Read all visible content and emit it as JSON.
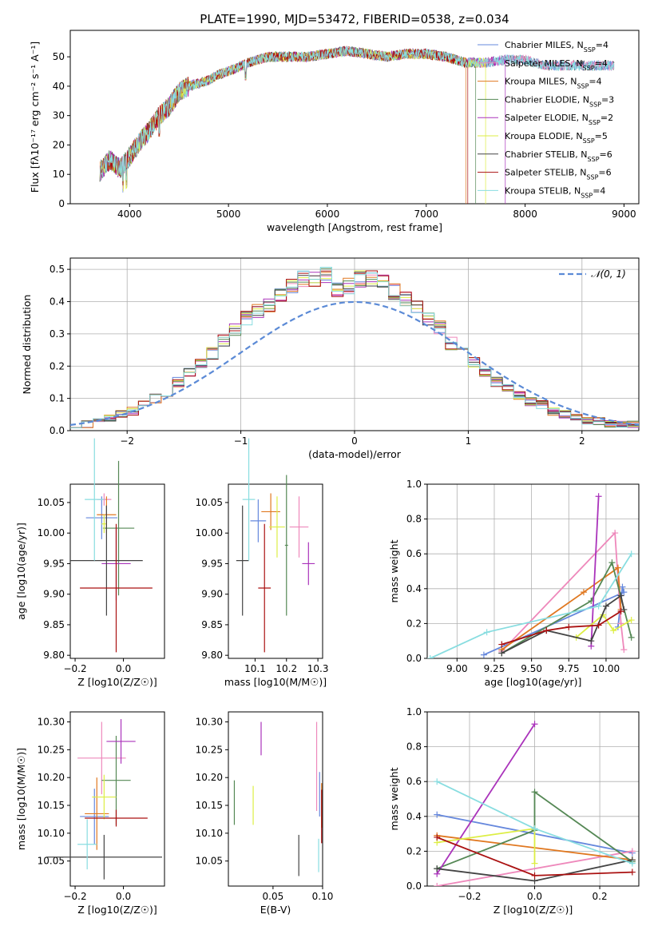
{
  "title": "PLATE=1990, MJD=53472, FIBERID=0538, z=0.034",
  "colors": [
    "#6688dd",
    "#ee88bb",
    "#e07820",
    "#558855",
    "#aa33bb",
    "#ddee44",
    "#444444",
    "#aa1111",
    "#88dde0"
  ],
  "chart_data": [
    {
      "type": "line",
      "id": "spectrum",
      "xlabel": "wavelength [Angstrom, rest frame]",
      "ylabel": "Flux [fλ10⁻¹⁷ erg cm⁻² s⁻¹ A⁻¹]",
      "xlim": [
        3400,
        9150
      ],
      "ylim": [
        0,
        59
      ],
      "xticks": [
        4000,
        5000,
        6000,
        7000,
        8000,
        9000
      ],
      "yticks": [
        0,
        10,
        20,
        30,
        40,
        50
      ],
      "legend_position": "top-right",
      "legend": [
        "Chabrier MILES, N_SSP=4",
        "Salpeter MILES, N_SSP=4",
        "Kroupa MILES, N_SSP=4",
        "Chabrier ELODIE, N_SSP=3",
        "Salpeter ELODIE, N_SSP=2",
        "Kroupa ELODIE, N_SSP=5",
        "Chabrier STELIB, N_SSP=6",
        "Salpeter STELIB, N_SSP=6",
        "Kroupa STELIB, N_SSP=4"
      ],
      "x": [
        3700,
        3800,
        3900,
        4000,
        4100,
        4200,
        4300,
        4400,
        4500,
        4600,
        4700,
        4800,
        4900,
        5000,
        5200,
        5400,
        5600,
        5800,
        6000,
        6200,
        6400,
        6600,
        6800,
        7000,
        7200,
        7400,
        7600,
        7800,
        8000,
        8200
      ],
      "y": [
        11,
        15,
        12,
        16,
        21,
        25,
        30,
        33,
        38,
        40,
        41,
        42,
        44,
        45,
        48,
        50,
        50,
        50,
        51,
        52,
        51,
        50,
        51,
        51,
        50,
        48,
        48,
        49,
        49,
        47
      ],
      "spectrum_end": [
        8900,
        8900,
        7400,
        7500,
        7800,
        7600,
        8900,
        7420,
        8900
      ]
    },
    {
      "type": "bar",
      "id": "residuals",
      "xlabel": "(data-model)/error",
      "ylabel": "Normed distribution",
      "xlim": [
        -2.5,
        2.5
      ],
      "ylim": [
        0,
        0.535
      ],
      "xticks": [
        -2,
        -1,
        0,
        1,
        2
      ],
      "yticks": [
        0.0,
        0.1,
        0.2,
        0.3,
        0.4,
        0.5
      ],
      "grid": true,
      "legend": [
        "𝒩(0, 1)"
      ],
      "legend_position": "top-right",
      "bin_width": 0.1,
      "bins_from": -2.5,
      "histogram": [
        0.02,
        0.02,
        0.03,
        0.04,
        0.05,
        0.06,
        0.08,
        0.1,
        0.12,
        0.15,
        0.18,
        0.21,
        0.24,
        0.28,
        0.31,
        0.35,
        0.37,
        0.39,
        0.42,
        0.45,
        0.47,
        0.47,
        0.48,
        0.44,
        0.45,
        0.47,
        0.47,
        0.46,
        0.43,
        0.41,
        0.38,
        0.35,
        0.32,
        0.27,
        0.24,
        0.21,
        0.18,
        0.15,
        0.13,
        0.11,
        0.09,
        0.08,
        0.06,
        0.05,
        0.04,
        0.03,
        0.03,
        0.02,
        0.02,
        0.02
      ]
    },
    {
      "type": "scatter",
      "id": "age-vs-z",
      "xlabel": "Z [log10(Z/Z☉)]",
      "ylabel": "age  [log10(age/yr)]",
      "xlim": [
        -0.22,
        0.17
      ],
      "ylim": [
        9.795,
        10.08
      ],
      "xticks": [
        -0.2,
        0.0
      ],
      "yticks": [
        9.8,
        9.85,
        9.9,
        9.95,
        10.0,
        10.05
      ],
      "points": [
        {
          "x": -0.09,
          "y": 10.025,
          "xerr": 0.065,
          "yerr": 0.035
        },
        {
          "x": -0.08,
          "y": 10.055,
          "xerr": 0.03,
          "yerr": 0.01
        },
        {
          "x": -0.07,
          "y": 10.03,
          "xerr": 0.04,
          "yerr": 0.03
        },
        {
          "x": -0.02,
          "y": 10.008,
          "xerr": 0.065,
          "yerr": 0.11
        },
        {
          "x": -0.03,
          "y": 9.95,
          "xerr": 0.06,
          "yerr": 0.06
        },
        {
          "x": -0.08,
          "y": 10.015,
          "xerr": 0.01,
          "yerr": 0.015
        },
        {
          "x": -0.07,
          "y": 9.955,
          "xerr": 0.15,
          "yerr": 0.09
        },
        {
          "x": -0.03,
          "y": 9.91,
          "xerr": 0.15,
          "yerr": 0.105
        },
        {
          "x": -0.12,
          "y": 10.055,
          "xerr": 0.04,
          "yerr": 0.1
        }
      ]
    },
    {
      "type": "scatter",
      "id": "age-vs-mass",
      "xlabel": "mass [log10(M/M☉)]",
      "ylabel": "",
      "xlim": [
        10.015,
        10.315
      ],
      "ylim": [
        9.795,
        10.08
      ],
      "xticks": [
        10.1,
        10.2,
        10.3
      ],
      "yticks": [
        9.8,
        9.85,
        9.9,
        9.95,
        10.0,
        10.05
      ],
      "points": [
        {
          "x": 10.11,
          "y": 10.02,
          "xerr": 0.025,
          "yerr": 0.035
        },
        {
          "x": 10.24,
          "y": 10.01,
          "xerr": 0.03,
          "yerr": 0.05
        },
        {
          "x": 10.15,
          "y": 10.035,
          "xerr": 0.03,
          "yerr": 0.03
        },
        {
          "x": 10.2,
          "y": 9.98,
          "xerr": 0.005,
          "yerr": 0.115
        },
        {
          "x": 10.27,
          "y": 9.95,
          "xerr": 0.02,
          "yerr": 0.035
        },
        {
          "x": 10.17,
          "y": 10.01,
          "xerr": 0.025,
          "yerr": 0.05
        },
        {
          "x": 10.06,
          "y": 9.955,
          "xerr": 0.02,
          "yerr": 0.09
        },
        {
          "x": 10.13,
          "y": 9.91,
          "xerr": 0.02,
          "yerr": 0.105
        },
        {
          "x": 10.08,
          "y": 10.055,
          "xerr": 0.02,
          "yerr": 0.1
        }
      ]
    },
    {
      "type": "line",
      "id": "weight-vs-age",
      "xlabel": "age  [log10(age/yr)]",
      "ylabel": "mass weight",
      "xlim": [
        8.8,
        10.22
      ],
      "ylim": [
        0.0,
        1.0
      ],
      "xticks": [
        9.0,
        9.25,
        9.5,
        9.75,
        10.0
      ],
      "yticks": [
        0.0,
        0.2,
        0.4,
        0.6,
        0.8,
        1.0
      ],
      "grid": true,
      "series": [
        {
          "x": [
            9.18,
            10.12,
            10.11,
            10.08
          ],
          "y": [
            0.02,
            0.38,
            0.41,
            0.18
          ]
        },
        {
          "x": [
            9.3,
            10.06,
            10.1,
            10.12
          ],
          "y": [
            0.04,
            0.72,
            0.2,
            0.05
          ]
        },
        {
          "x": [
            9.3,
            9.85,
            10.08,
            10.1
          ],
          "y": [
            0.05,
            0.38,
            0.52,
            0.28
          ]
        },
        {
          "x": [
            9.3,
            9.9,
            10.04,
            10.17
          ],
          "y": [
            0.03,
            0.33,
            0.55,
            0.12
          ]
        },
        {
          "x": [
            9.9,
            9.95
          ],
          "y": [
            0.07,
            0.93
          ]
        },
        {
          "x": [
            9.8,
            9.98,
            10.05,
            10.17
          ],
          "y": [
            0.12,
            0.25,
            0.16,
            0.22
          ]
        },
        {
          "x": [
            9.3,
            9.6,
            9.9,
            10.0,
            10.1,
            10.12
          ],
          "y": [
            0.03,
            0.16,
            0.1,
            0.3,
            0.36,
            0.28
          ]
        },
        {
          "x": [
            9.3,
            9.6,
            9.75,
            9.95,
            10.1
          ],
          "y": [
            0.08,
            0.16,
            0.18,
            0.19,
            0.27
          ]
        },
        {
          "x": [
            8.82,
            9.2,
            9.95,
            10.17
          ],
          "y": [
            0.0,
            0.15,
            0.3,
            0.6
          ]
        }
      ]
    },
    {
      "type": "scatter",
      "id": "mass-vs-z",
      "xlabel": "Z [log10(Z/Z☉)]",
      "ylabel": "mass [log10(M/M☉)]",
      "xlim": [
        -0.22,
        0.17
      ],
      "ylim": [
        10.005,
        10.318
      ],
      "xticks": [
        -0.2,
        0.0
      ],
      "yticks": [
        10.05,
        10.1,
        10.15,
        10.2,
        10.25,
        10.3
      ],
      "points": [
        {
          "x": -0.12,
          "y": 10.13,
          "xerr": 0.06,
          "yerr": 0.05
        },
        {
          "x": -0.09,
          "y": 10.235,
          "xerr": 0.1,
          "yerr": 0.065
        },
        {
          "x": -0.11,
          "y": 10.135,
          "xerr": 0.05,
          "yerr": 0.065
        },
        {
          "x": -0.03,
          "y": 10.195,
          "xerr": 0.06,
          "yerr": 0.08
        },
        {
          "x": -0.01,
          "y": 10.265,
          "xerr": 0.06,
          "yerr": 0.04
        },
        {
          "x": -0.08,
          "y": 10.165,
          "xerr": 0.05,
          "yerr": 0.04
        },
        {
          "x": -0.08,
          "y": 10.057,
          "xerr": 0.24,
          "yerr": 0.04
        },
        {
          "x": -0.03,
          "y": 10.127,
          "xerr": 0.13,
          "yerr": 0.015
        },
        {
          "x": -0.15,
          "y": 10.08,
          "xerr": 0.04,
          "yerr": 0.045
        }
      ]
    },
    {
      "type": "scatter",
      "id": "mass-vs-ebv",
      "xlabel": "E(B-V)",
      "ylabel": "",
      "xlim": [
        0.005,
        0.1
      ],
      "ylim": [
        10.005,
        10.318
      ],
      "xticks": [
        0.05,
        0.1
      ],
      "yticks": [
        10.05,
        10.1,
        10.15,
        10.2,
        10.25,
        10.3
      ],
      "points": [
        {
          "x": 0.097,
          "y": 10.17,
          "xerr": 0,
          "yerr": 0.04
        },
        {
          "x": 0.094,
          "y": 10.22,
          "xerr": 0,
          "yerr": 0.08
        },
        {
          "x": 0.099,
          "y": 10.15,
          "xerr": 0,
          "yerr": 0.04
        },
        {
          "x": 0.011,
          "y": 10.155,
          "xerr": 0,
          "yerr": 0.04
        },
        {
          "x": 0.038,
          "y": 10.27,
          "xerr": 0,
          "yerr": 0.03
        },
        {
          "x": 0.03,
          "y": 10.15,
          "xerr": 0,
          "yerr": 0.035
        },
        {
          "x": 0.076,
          "y": 10.06,
          "xerr": 0,
          "yerr": 0.037
        },
        {
          "x": 0.099,
          "y": 10.13,
          "xerr": 0,
          "yerr": 0.048
        },
        {
          "x": 0.096,
          "y": 10.06,
          "xerr": 0,
          "yerr": 0.03
        }
      ]
    },
    {
      "type": "line",
      "id": "weight-vs-z",
      "xlabel": "Z [log10(Z/Z☉)]",
      "ylabel": "mass weight",
      "xlim": [
        -0.33,
        0.32
      ],
      "ylim": [
        0.0,
        1.0
      ],
      "xticks": [
        -0.2,
        0.0,
        0.2
      ],
      "yticks": [
        0.0,
        0.2,
        0.4,
        0.6,
        0.8,
        1.0
      ],
      "grid": true,
      "series": [
        {
          "x": [
            -0.3,
            0.3
          ],
          "y": [
            0.41,
            0.19
          ]
        },
        {
          "x": [
            -0.3,
            0.3
          ],
          "y": [
            0.0,
            0.2
          ]
        },
        {
          "x": [
            -0.3,
            0.3
          ],
          "y": [
            0.29,
            0.15
          ]
        },
        {
          "x": [
            -0.3,
            0.0,
            0.0,
            0.3
          ],
          "y": [
            0.1,
            0.32,
            0.54,
            0.14
          ]
        },
        {
          "x": [
            -0.3,
            0.0
          ],
          "y": [
            0.07,
            0.93
          ]
        },
        {
          "x": [
            -0.3,
            0.0,
            0.0
          ],
          "y": [
            0.25,
            0.33,
            0.13
          ]
        },
        {
          "x": [
            -0.3,
            0.0,
            0.3
          ],
          "y": [
            0.1,
            0.03,
            0.15
          ]
        },
        {
          "x": [
            -0.3,
            0.0,
            0.3
          ],
          "y": [
            0.28,
            0.06,
            0.08
          ]
        },
        {
          "x": [
            -0.3,
            0.0,
            0.3
          ],
          "y": [
            0.6,
            0.33,
            0.13
          ]
        }
      ]
    }
  ]
}
